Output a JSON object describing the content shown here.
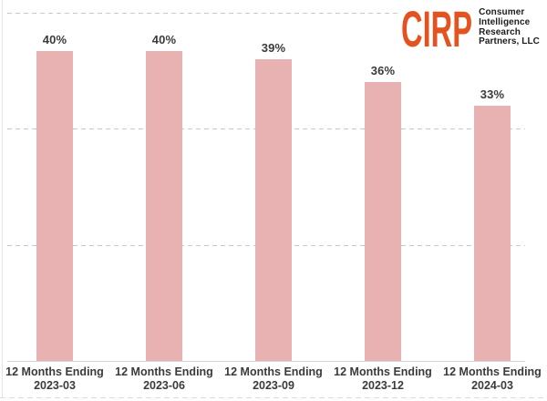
{
  "logo": {
    "wordmark": "CIRP",
    "wordmark_color": "#e4521f",
    "tagline_lines": [
      "Consumer",
      "Intelligence",
      "Research",
      "Partners, LLC"
    ]
  },
  "chart_data": {
    "type": "bar",
    "title": "",
    "xlabel": "",
    "ylabel": "",
    "categories": [
      {
        "line1": "12 Months Ending",
        "line2": "2023-03"
      },
      {
        "line1": "12 Months Ending",
        "line2": "2023-06"
      },
      {
        "line1": "12 Months Ending",
        "line2": "2023-09"
      },
      {
        "line1": "12 Months Ending",
        "line2": "2023-12"
      },
      {
        "line1": "12 Months Ending",
        "line2": "2024-03"
      }
    ],
    "values": [
      40,
      40,
      39,
      36,
      33
    ],
    "value_labels": [
      "40%",
      "40%",
      "39%",
      "36%",
      "33%"
    ],
    "ylim": [
      0,
      45
    ],
    "gridline_step": 15,
    "grid_on": true,
    "legend": null,
    "bar_color": "#e9b2b2",
    "value_label_color": "#3b3b3b",
    "axis_label_color": "#3b3b3b",
    "gridline_color": "#c9c9c9",
    "axis_line_color": "#d4d4d4"
  }
}
